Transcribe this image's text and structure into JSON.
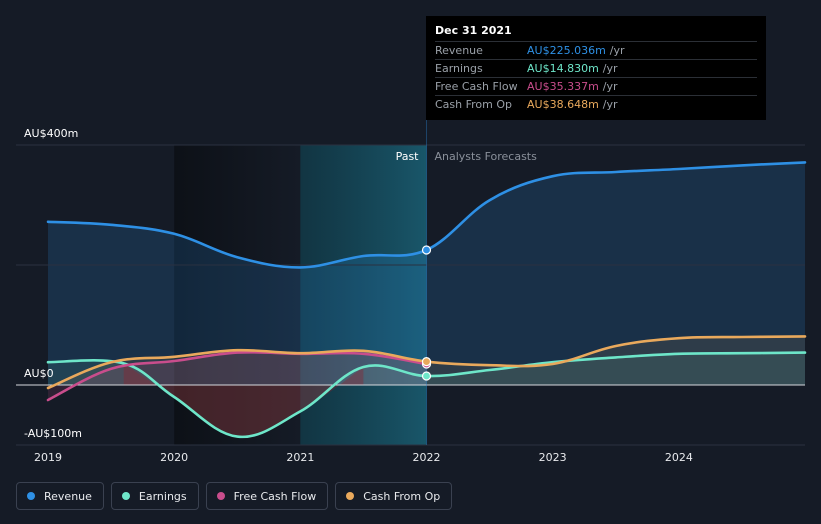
{
  "chart_data": {
    "type": "line",
    "x_ticks": [
      "2019",
      "2020",
      "2021",
      "2022",
      "2023",
      "2024"
    ],
    "y_ticks": [
      {
        "label": "AU$400m",
        "value": 400
      },
      {
        "label": "AU$0",
        "value": 0
      },
      {
        "label": "-AU$100m",
        "value": -100
      }
    ],
    "ylim": [
      -100,
      400
    ],
    "past_label": "Past",
    "forecast_label": "Analysts Forecasts",
    "highlight_x": 2022.0,
    "series": [
      {
        "name": "Revenue",
        "color": "#2e90e5",
        "points": [
          [
            2019.0,
            272
          ],
          [
            2019.5,
            267
          ],
          [
            2020.0,
            252
          ],
          [
            2020.5,
            213
          ],
          [
            2021.0,
            196
          ],
          [
            2021.5,
            215
          ],
          [
            2022.0,
            225
          ],
          [
            2022.5,
            308
          ],
          [
            2023.0,
            348
          ],
          [
            2023.5,
            355
          ],
          [
            2024.0,
            360
          ],
          [
            2024.5,
            366
          ],
          [
            2025.0,
            371
          ]
        ]
      },
      {
        "name": "Earnings",
        "color": "#6ee6c9",
        "points": [
          [
            2019.0,
            38
          ],
          [
            2019.6,
            36
          ],
          [
            2020.0,
            -20
          ],
          [
            2020.5,
            -86
          ],
          [
            2021.0,
            -44
          ],
          [
            2021.5,
            30
          ],
          [
            2022.0,
            15
          ],
          [
            2022.5,
            25
          ],
          [
            2023.0,
            38
          ],
          [
            2023.5,
            46
          ],
          [
            2024.0,
            52
          ],
          [
            2024.5,
            53
          ],
          [
            2025.0,
            54
          ]
        ]
      },
      {
        "name": "Free Cash Flow",
        "color": "#c94d8c",
        "points": [
          [
            2019.0,
            -25
          ],
          [
            2019.5,
            27
          ],
          [
            2020.0,
            40
          ],
          [
            2020.5,
            54
          ],
          [
            2021.0,
            52
          ],
          [
            2021.5,
            52
          ],
          [
            2022.0,
            35
          ]
        ]
      },
      {
        "name": "Cash From Op",
        "color": "#e9a95c",
        "points": [
          [
            2019.0,
            -5
          ],
          [
            2019.5,
            38
          ],
          [
            2020.0,
            47
          ],
          [
            2020.5,
            58
          ],
          [
            2021.0,
            53
          ],
          [
            2021.5,
            57
          ],
          [
            2022.0,
            39
          ],
          [
            2022.5,
            33
          ],
          [
            2023.0,
            35
          ],
          [
            2023.5,
            65
          ],
          [
            2024.0,
            78
          ],
          [
            2024.5,
            80
          ],
          [
            2025.0,
            81
          ]
        ]
      }
    ]
  },
  "tooltip": {
    "date": "Dec 31 2021",
    "rows": [
      {
        "label": "Revenue",
        "value": "AU$225.036m",
        "unit": "/yr",
        "color": "#2e90e5"
      },
      {
        "label": "Earnings",
        "value": "AU$14.830m",
        "unit": "/yr",
        "color": "#6ee6c9"
      },
      {
        "label": "Free Cash Flow",
        "value": "AU$35.337m",
        "unit": "/yr",
        "color": "#c94d8c"
      },
      {
        "label": "Cash From Op",
        "value": "AU$38.648m",
        "unit": "/yr",
        "color": "#e9a95c"
      }
    ]
  },
  "legend": [
    {
      "label": "Revenue",
      "color": "#2e90e5"
    },
    {
      "label": "Earnings",
      "color": "#6ee6c9"
    },
    {
      "label": "Free Cash Flow",
      "color": "#c94d8c"
    },
    {
      "label": "Cash From Op",
      "color": "#e9a95c"
    }
  ]
}
